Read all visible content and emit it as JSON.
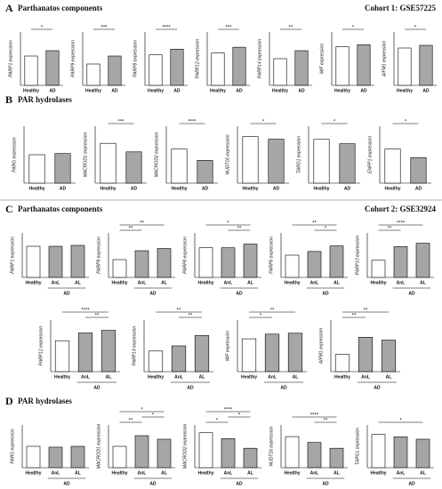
{
  "panels": [
    {
      "letter": "A",
      "title": "Parthanatos components",
      "cohort": "Cohort 1: GSE57225"
    },
    {
      "letter": "B",
      "title": "PAR hydrolases"
    },
    {
      "letter": "C",
      "title": "Parthanatos components",
      "cohort": "Cohort 2: GSE32924"
    },
    {
      "letter": "D",
      "title": "PAR hydrolases"
    }
  ],
  "chart_data": [
    {
      "type": "bar",
      "ylabel": "PARP1 expression",
      "categories": [
        "Healthy",
        "AD"
      ],
      "values": [
        5.5,
        6.5
      ],
      "colors": [
        "#ffffff",
        "#a6a6a6"
      ],
      "ylim": [
        0,
        10
      ],
      "annotations": [
        {
          "text": "*",
          "pair": [
            "Healthy",
            "AD"
          ]
        }
      ]
    },
    {
      "type": "bar",
      "ylabel": "PARP9 expression",
      "categories": [
        "Healthy",
        "AD"
      ],
      "values": [
        4,
        5.5
      ],
      "colors": [
        "#ffffff",
        "#a6a6a6"
      ],
      "ylim": [
        0,
        10
      ],
      "annotations": [
        {
          "text": "***",
          "pair": [
            "Healthy",
            "AD"
          ]
        }
      ]
    },
    {
      "type": "bar",
      "ylabel": "PARP8 expression",
      "categories": [
        "Healthy",
        "AD"
      ],
      "values": [
        8,
        9.5
      ],
      "colors": [
        "#ffffff",
        "#a6a6a6"
      ],
      "ylim": [
        0,
        14
      ],
      "annotations": [
        {
          "text": "****",
          "pair": [
            "Healthy",
            "AD"
          ]
        }
      ]
    },
    {
      "type": "bar",
      "ylabel": "PARP12 expression",
      "categories": [
        "Healthy",
        "AD"
      ],
      "values": [
        8.5,
        10
      ],
      "colors": [
        "#ffffff",
        "#a6a6a6"
      ],
      "ylim": [
        0,
        14
      ],
      "annotations": [
        {
          "text": "***",
          "pair": [
            "Healthy",
            "AD"
          ]
        }
      ]
    },
    {
      "type": "bar",
      "ylabel": "PARP14 expression",
      "categories": [
        "Healthy",
        "AD"
      ],
      "values": [
        5,
        6.5
      ],
      "colors": [
        "#ffffff",
        "#a6a6a6"
      ],
      "ylim": [
        0,
        10
      ],
      "annotations": [
        {
          "text": "**",
          "pair": [
            "Healthy",
            "AD"
          ]
        }
      ]
    },
    {
      "type": "bar",
      "ylabel": "MIF expression",
      "categories": [
        "Healthy",
        "AD"
      ],
      "values": [
        5.8,
        6.1
      ],
      "colors": [
        "#ffffff",
        "#a6a6a6"
      ],
      "ylim": [
        0,
        8
      ],
      "annotations": [
        {
          "text": "*",
          "pair": [
            "Healthy",
            "AD"
          ]
        }
      ]
    },
    {
      "type": "bar",
      "ylabel": "AIFM1 expression",
      "categories": [
        "Healthy",
        "AD"
      ],
      "values": [
        7,
        7.5
      ],
      "colors": [
        "#ffffff",
        "#a6a6a6"
      ],
      "ylim": [
        0,
        10
      ],
      "annotations": [
        {
          "text": "*",
          "pair": [
            "Healthy",
            "AD"
          ]
        }
      ]
    },
    {
      "type": "bar",
      "ylabel": "PARG expression",
      "categories": [
        "Healthy",
        "AD"
      ],
      "values": [
        5,
        5.2
      ],
      "colors": [
        "#ffffff",
        "#a6a6a6"
      ],
      "ylim": [
        0,
        10
      ],
      "annotations": []
    },
    {
      "type": "bar",
      "ylabel": "MACROD1 expression",
      "categories": [
        "Healthy",
        "AD"
      ],
      "values": [
        7,
        5.5
      ],
      "colors": [
        "#ffffff",
        "#a6a6a6"
      ],
      "ylim": [
        0,
        10
      ],
      "annotations": [
        {
          "text": "***",
          "pair": [
            "Healthy",
            "AD"
          ]
        }
      ]
    },
    {
      "type": "bar",
      "ylabel": "MACROD2 expression",
      "categories": [
        "Healthy",
        "AD"
      ],
      "values": [
        6,
        4
      ],
      "colors": [
        "#ffffff",
        "#a6a6a6"
      ],
      "ylim": [
        0,
        10
      ],
      "annotations": [
        {
          "text": "****",
          "pair": [
            "Healthy",
            "AD"
          ]
        }
      ]
    },
    {
      "type": "bar",
      "ylabel": "NUDT16 expression",
      "categories": [
        "Healthy",
        "AD"
      ],
      "values": [
        9,
        8.5
      ],
      "colors": [
        "#ffffff",
        "#a6a6a6"
      ],
      "ylim": [
        0,
        11
      ],
      "annotations": [
        {
          "text": "*",
          "pair": [
            "Healthy",
            "AD"
          ]
        }
      ]
    },
    {
      "type": "bar",
      "ylabel": "TARG1 expression",
      "categories": [
        "Healthy",
        "AD"
      ],
      "values": [
        10,
        9
      ],
      "colors": [
        "#ffffff",
        "#a6a6a6"
      ],
      "ylim": [
        0,
        13
      ],
      "annotations": [
        {
          "text": "*",
          "pair": [
            "Healthy",
            "AD"
          ]
        }
      ]
    },
    {
      "type": "bar",
      "ylabel": "ENPP1 expression",
      "categories": [
        "Healthy",
        "AD"
      ],
      "values": [
        6,
        4.5
      ],
      "colors": [
        "#ffffff",
        "#a6a6a6"
      ],
      "ylim": [
        0,
        10
      ],
      "annotations": [
        {
          "text": "*",
          "pair": [
            "Healthy",
            "AD"
          ]
        }
      ]
    },
    {
      "type": "bar",
      "ylabel": "PARP1 expression",
      "categories": [
        "Healthy",
        "AnL",
        "AL"
      ],
      "values": [
        7,
        7,
        7.2
      ],
      "colors": [
        "#ffffff",
        "#a6a6a6",
        "#a6a6a6"
      ],
      "ylim": [
        0,
        10
      ],
      "group": {
        "label": "AD",
        "members": [
          "AnL",
          "AL"
        ]
      },
      "annotations": []
    },
    {
      "type": "bar",
      "ylabel": "PARP9 expression",
      "categories": [
        "Healthy",
        "AnL",
        "AL"
      ],
      "values": [
        4,
        6,
        6.5
      ],
      "colors": [
        "#ffffff",
        "#a6a6a6",
        "#a6a6a6"
      ],
      "ylim": [
        0,
        10
      ],
      "group": {
        "label": "AD",
        "members": [
          "AnL",
          "AL"
        ]
      },
      "annotations": [
        {
          "text": "**",
          "pair": [
            "Healthy",
            "AnL"
          ]
        },
        {
          "text": "**",
          "pair": [
            "Healthy",
            "AL"
          ]
        }
      ]
    },
    {
      "type": "bar",
      "ylabel": "PARP8 expression",
      "categories": [
        "Healthy",
        "AnL",
        "AL"
      ],
      "values": [
        8,
        8,
        9
      ],
      "colors": [
        "#ffffff",
        "#a6a6a6",
        "#a6a6a6"
      ],
      "ylim": [
        0,
        12
      ],
      "group": {
        "label": "AD",
        "members": [
          "AnL",
          "AL"
        ]
      },
      "annotations": [
        {
          "text": "**",
          "pair": [
            "AnL",
            "AL"
          ]
        },
        {
          "text": "*",
          "pair": [
            "Healthy",
            "AL"
          ]
        }
      ]
    },
    {
      "type": "bar",
      "ylabel": "PARP6 expression",
      "categories": [
        "Healthy",
        "AnL",
        "AL"
      ],
      "values": [
        6,
        7,
        8.5
      ],
      "colors": [
        "#ffffff",
        "#a6a6a6",
        "#a6a6a6"
      ],
      "ylim": [
        0,
        12
      ],
      "group": {
        "label": "AD",
        "members": [
          "AnL",
          "AL"
        ]
      },
      "annotations": [
        {
          "text": "*",
          "pair": [
            "AnL",
            "AL"
          ]
        },
        {
          "text": "**",
          "pair": [
            "Healthy",
            "AL"
          ]
        }
      ]
    },
    {
      "type": "bar",
      "ylabel": "PARP10 expression",
      "categories": [
        "Healthy",
        "AnL",
        "AL"
      ],
      "values": [
        5,
        9,
        10
      ],
      "colors": [
        "#ffffff",
        "#a6a6a6",
        "#a6a6a6"
      ],
      "ylim": [
        0,
        13
      ],
      "group": {
        "label": "AD",
        "members": [
          "AnL",
          "AL"
        ]
      },
      "annotations": [
        {
          "text": "**",
          "pair": [
            "Healthy",
            "AnL"
          ]
        },
        {
          "text": "****",
          "pair": [
            "Healthy",
            "AL"
          ]
        }
      ]
    },
    {
      "type": "bar",
      "ylabel": "PARP12 expression",
      "categories": [
        "Healthy",
        "AnL",
        "AL"
      ],
      "values": [
        6,
        7.5,
        8
      ],
      "colors": [
        "#ffffff",
        "#a6a6a6",
        "#a6a6a6"
      ],
      "ylim": [
        0,
        10
      ],
      "group": {
        "label": "AD",
        "members": [
          "AnL",
          "AL"
        ]
      },
      "annotations": [
        {
          "text": "**",
          "pair": [
            "AnL",
            "AL"
          ]
        },
        {
          "text": "****",
          "pair": [
            "Healthy",
            "AL"
          ]
        }
      ]
    },
    {
      "type": "bar",
      "ylabel": "PARP14 expression",
      "categories": [
        "Healthy",
        "AnL",
        "AL"
      ],
      "values": [
        4,
        5,
        7
      ],
      "colors": [
        "#ffffff",
        "#a6a6a6",
        "#a6a6a6"
      ],
      "ylim": [
        0,
        10
      ],
      "group": {
        "label": "AD",
        "members": [
          "AnL",
          "AL"
        ]
      },
      "annotations": [
        {
          "text": "**",
          "pair": [
            "AnL",
            "AL"
          ]
        },
        {
          "text": "**",
          "pair": [
            "Healthy",
            "AL"
          ]
        }
      ]
    },
    {
      "type": "bar",
      "ylabel": "MIF expression",
      "categories": [
        "Healthy",
        "AnL",
        "AL"
      ],
      "values": [
        7,
        8,
        8.2
      ],
      "colors": [
        "#ffffff",
        "#a6a6a6",
        "#a6a6a6"
      ],
      "ylim": [
        0,
        11
      ],
      "group": {
        "label": "AD",
        "members": [
          "AnL",
          "AL"
        ]
      },
      "annotations": [
        {
          "text": "*",
          "pair": [
            "Healthy",
            "AnL"
          ]
        },
        {
          "text": "**",
          "pair": [
            "Healthy",
            "AL"
          ]
        }
      ]
    },
    {
      "type": "bar",
      "ylabel": "AIFM1 expression",
      "categories": [
        "Healthy",
        "AnL",
        "AL"
      ],
      "values": [
        3,
        6,
        5.5
      ],
      "colors": [
        "#ffffff",
        "#a6a6a6",
        "#a6a6a6"
      ],
      "ylim": [
        0,
        9
      ],
      "group": {
        "label": "AD",
        "members": [
          "AnL",
          "AL"
        ]
      },
      "annotations": [
        {
          "text": "**",
          "pair": [
            "Healthy",
            "AnL"
          ]
        },
        {
          "text": "**",
          "pair": [
            "Healthy",
            "AL"
          ]
        }
      ]
    },
    {
      "type": "bar",
      "ylabel": "PARG expression",
      "categories": [
        "Healthy",
        "AnL",
        "AL"
      ],
      "values": [
        5,
        4.8,
        5
      ],
      "colors": [
        "#ffffff",
        "#a6a6a6",
        "#a6a6a6"
      ],
      "ylim": [
        0,
        10
      ],
      "group": {
        "label": "AD",
        "members": [
          "AnL",
          "AL"
        ]
      },
      "annotations": []
    },
    {
      "type": "bar",
      "ylabel": "MACROD1 expression",
      "categories": [
        "Healthy",
        "AnL",
        "AL"
      ],
      "values": [
        6,
        9,
        8
      ],
      "colors": [
        "#ffffff",
        "#a6a6a6",
        "#a6a6a6"
      ],
      "ylim": [
        0,
        12
      ],
      "group": {
        "label": "AD",
        "members": [
          "AnL",
          "AL"
        ]
      },
      "annotations": [
        {
          "text": "**",
          "pair": [
            "Healthy",
            "AnL"
          ]
        },
        {
          "text": "*",
          "pair": [
            "AnL",
            "AL"
          ]
        },
        {
          "text": "*",
          "pair": [
            "Healthy",
            "AL"
          ]
        }
      ]
    },
    {
      "type": "bar",
      "ylabel": "MACROD2 expression",
      "categories": [
        "Healthy",
        "AnL",
        "AL"
      ],
      "values": [
        9,
        7.5,
        5
      ],
      "colors": [
        "#ffffff",
        "#a6a6a6",
        "#a6a6a6"
      ],
      "ylim": [
        0,
        11
      ],
      "group": {
        "label": "AD",
        "members": [
          "AnL",
          "AL"
        ]
      },
      "annotations": [
        {
          "text": "*",
          "pair": [
            "Healthy",
            "AnL"
          ]
        },
        {
          "text": "*",
          "pair": [
            "AnL",
            "AL"
          ]
        },
        {
          "text": "****",
          "pair": [
            "Healthy",
            "AL"
          ]
        }
      ]
    },
    {
      "type": "bar",
      "ylabel": "NUDT16 expression",
      "categories": [
        "Healthy",
        "AnL",
        "AL"
      ],
      "values": [
        8,
        6.5,
        5
      ],
      "colors": [
        "#ffffff",
        "#a6a6a6",
        "#a6a6a6"
      ],
      "ylim": [
        0,
        11
      ],
      "group": {
        "label": "AD",
        "members": [
          "AnL",
          "AL"
        ]
      },
      "annotations": [
        {
          "text": "**",
          "pair": [
            "AnL",
            "AL"
          ]
        },
        {
          "text": "****",
          "pair": [
            "Healthy",
            "AL"
          ]
        }
      ]
    },
    {
      "type": "bar",
      "ylabel": "TARG1 expression",
      "categories": [
        "Healthy",
        "AnL",
        "AL"
      ],
      "values": [
        7,
        6.5,
        6
      ],
      "colors": [
        "#ffffff",
        "#a6a6a6",
        "#a6a6a6"
      ],
      "ylim": [
        0,
        9
      ],
      "group": {
        "label": "AD",
        "members": [
          "AnL",
          "AL"
        ]
      },
      "annotations": [
        {
          "text": "*",
          "pair": [
            "Healthy",
            "AL"
          ]
        }
      ]
    }
  ]
}
